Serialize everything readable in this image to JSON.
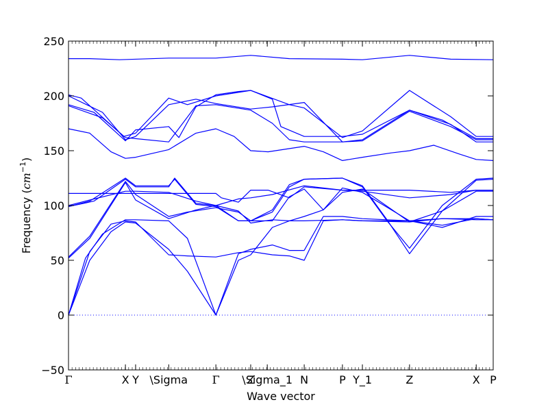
{
  "chart_data": {
    "type": "line",
    "xlabel": "Wave vector",
    "ylabel_prefix": "Frequency (",
    "ylabel_unit_base": "cm",
    "ylabel_unit_exp": "−1",
    "ylabel_suffix": ")",
    "ylim": [
      -50,
      250
    ],
    "y_ticks": [
      -50,
      0,
      50,
      100,
      150,
      200,
      250
    ],
    "y_tick_labels": [
      "−50",
      "0",
      "50",
      "100",
      "150",
      "200",
      "250"
    ],
    "x_range": [
      0,
      1
    ],
    "grid": false,
    "legend": "none",
    "line_color": "#0000ff",
    "zero_line": "dotted",
    "high_symmetry_points": [
      {
        "label": "Γ",
        "x": 0.0
      },
      {
        "label": "X",
        "x": 0.134
      },
      {
        "label": "Y",
        "x": 0.158
      },
      {
        "label": "\\Sigma",
        "x": 0.236
      },
      {
        "label": "Γ",
        "x": 0.347
      },
      {
        "label": "Z",
        "x": 0.429
      },
      {
        "label": "\\Sigma_1",
        "x": 0.468
      },
      {
        "label": "N",
        "x": 0.555
      },
      {
        "label": "P",
        "x": 0.645
      },
      {
        "label": "Y_1",
        "x": 0.692
      },
      {
        "label": "Z",
        "x": 0.803
      },
      {
        "label": "X",
        "x": 0.96
      },
      {
        "label": "P",
        "x": 1.0
      }
    ],
    "series": [
      {
        "points": [
          [
            0.0,
            234
          ],
          [
            0.05,
            234
          ],
          [
            0.12,
            233
          ],
          [
            0.236,
            234.5
          ],
          [
            0.347,
            234.5
          ],
          [
            0.429,
            237
          ],
          [
            0.52,
            234
          ],
          [
            0.645,
            233.5
          ],
          [
            0.692,
            233
          ],
          [
            0.803,
            237
          ],
          [
            0.9,
            233.5
          ],
          [
            1.0,
            233
          ]
        ]
      },
      {
        "points": [
          [
            0.0,
            201
          ],
          [
            0.03,
            198
          ],
          [
            0.13,
            163
          ],
          [
            0.158,
            166
          ],
          [
            0.236,
            198
          ],
          [
            0.28,
            192
          ],
          [
            0.347,
            200
          ],
          [
            0.429,
            205
          ],
          [
            0.52,
            192
          ],
          [
            0.555,
            189
          ],
          [
            0.645,
            162
          ],
          [
            0.692,
            168
          ],
          [
            0.803,
            205
          ],
          [
            0.9,
            181
          ],
          [
            0.96,
            163
          ],
          [
            1.0,
            163
          ]
        ]
      },
      {
        "points": [
          [
            0.0,
            200
          ],
          [
            0.08,
            185
          ],
          [
            0.134,
            160
          ],
          [
            0.158,
            163
          ],
          [
            0.236,
            192
          ],
          [
            0.3,
            197
          ],
          [
            0.347,
            193
          ],
          [
            0.429,
            188
          ],
          [
            0.48,
            190
          ],
          [
            0.555,
            194
          ],
          [
            0.645,
            158
          ],
          [
            0.692,
            160
          ],
          [
            0.803,
            187
          ],
          [
            0.9,
            174
          ],
          [
            0.96,
            158
          ],
          [
            1.0,
            158
          ]
        ]
      },
      {
        "points": [
          [
            0.0,
            192
          ],
          [
            0.06,
            185
          ],
          [
            0.134,
            159
          ],
          [
            0.158,
            169
          ],
          [
            0.236,
            172
          ],
          [
            0.26,
            162
          ],
          [
            0.3,
            190
          ],
          [
            0.347,
            201
          ],
          [
            0.4,
            204
          ],
          [
            0.429,
            205
          ],
          [
            0.48,
            197
          ],
          [
            0.5,
            172
          ],
          [
            0.555,
            163
          ],
          [
            0.645,
            163
          ],
          [
            0.692,
            165
          ],
          [
            0.803,
            187
          ],
          [
            0.88,
            178
          ],
          [
            0.96,
            161
          ],
          [
            1.0,
            161
          ]
        ]
      },
      {
        "points": [
          [
            0.0,
            191
          ],
          [
            0.08,
            180
          ],
          [
            0.134,
            162
          ],
          [
            0.158,
            161
          ],
          [
            0.236,
            158
          ],
          [
            0.3,
            191
          ],
          [
            0.347,
            192
          ],
          [
            0.429,
            187
          ],
          [
            0.48,
            175
          ],
          [
            0.52,
            160
          ],
          [
            0.555,
            158
          ],
          [
            0.645,
            158
          ],
          [
            0.692,
            159
          ],
          [
            0.803,
            186
          ],
          [
            0.9,
            172
          ],
          [
            0.96,
            160
          ],
          [
            1.0,
            160
          ]
        ]
      },
      {
        "points": [
          [
            0.0,
            170
          ],
          [
            0.05,
            166
          ],
          [
            0.1,
            149
          ],
          [
            0.134,
            143
          ],
          [
            0.158,
            144
          ],
          [
            0.236,
            151
          ],
          [
            0.3,
            166
          ],
          [
            0.347,
            170
          ],
          [
            0.39,
            163
          ],
          [
            0.429,
            150
          ],
          [
            0.47,
            149
          ],
          [
            0.555,
            154
          ],
          [
            0.6,
            149
          ],
          [
            0.645,
            141
          ],
          [
            0.692,
            144
          ],
          [
            0.76,
            148
          ],
          [
            0.803,
            150
          ],
          [
            0.86,
            155
          ],
          [
            0.92,
            147
          ],
          [
            0.96,
            142
          ],
          [
            1.0,
            141
          ]
        ]
      },
      {
        "points": [
          [
            0.0,
            111
          ],
          [
            0.134,
            111
          ],
          [
            0.158,
            111
          ],
          [
            0.236,
            111
          ],
          [
            0.347,
            111
          ],
          [
            0.36,
            107
          ],
          [
            0.4,
            103
          ],
          [
            0.429,
            114
          ],
          [
            0.47,
            114
          ],
          [
            0.52,
            107
          ],
          [
            0.555,
            117
          ],
          [
            0.645,
            114
          ],
          [
            0.692,
            114
          ],
          [
            0.803,
            114
          ],
          [
            0.9,
            112
          ],
          [
            0.96,
            114
          ],
          [
            1.0,
            114
          ]
        ]
      },
      {
        "points": [
          [
            0.0,
            100
          ],
          [
            0.05,
            105
          ],
          [
            0.134,
            113
          ],
          [
            0.158,
            113
          ],
          [
            0.236,
            112
          ],
          [
            0.3,
            104
          ],
          [
            0.347,
            100
          ],
          [
            0.4,
            106
          ],
          [
            0.429,
            107
          ],
          [
            0.48,
            110
          ],
          [
            0.555,
            118
          ],
          [
            0.645,
            114
          ],
          [
            0.692,
            113
          ],
          [
            0.803,
            107
          ],
          [
            0.9,
            110
          ],
          [
            0.96,
            114
          ],
          [
            1.0,
            114
          ]
        ]
      },
      {
        "points": [
          [
            0.0,
            99
          ],
          [
            0.05,
            104
          ],
          [
            0.134,
            125
          ],
          [
            0.158,
            118
          ],
          [
            0.236,
            118
          ],
          [
            0.25,
            124
          ],
          [
            0.3,
            101
          ],
          [
            0.347,
            99
          ],
          [
            0.4,
            86
          ],
          [
            0.429,
            86
          ],
          [
            0.48,
            96
          ],
          [
            0.52,
            119
          ],
          [
            0.555,
            124
          ],
          [
            0.645,
            125
          ],
          [
            0.692,
            117
          ],
          [
            0.75,
            86
          ],
          [
            0.803,
            61
          ],
          [
            0.88,
            100
          ],
          [
            0.96,
            124
          ],
          [
            1.0,
            125
          ]
        ]
      },
      {
        "points": [
          [
            0.0,
            99
          ],
          [
            0.06,
            104
          ],
          [
            0.134,
            124
          ],
          [
            0.158,
            117
          ],
          [
            0.236,
            117
          ],
          [
            0.25,
            125
          ],
          [
            0.3,
            102
          ],
          [
            0.347,
            100
          ],
          [
            0.4,
            86
          ],
          [
            0.429,
            86
          ],
          [
            0.48,
            94
          ],
          [
            0.52,
            117
          ],
          [
            0.555,
            124
          ],
          [
            0.645,
            125
          ],
          [
            0.692,
            118
          ],
          [
            0.75,
            87
          ],
          [
            0.803,
            56
          ],
          [
            0.88,
            95
          ],
          [
            0.96,
            123
          ],
          [
            1.0,
            124
          ]
        ]
      },
      {
        "points": [
          [
            0.0,
            53
          ],
          [
            0.05,
            72
          ],
          [
            0.134,
            122
          ],
          [
            0.158,
            110
          ],
          [
            0.236,
            90
          ],
          [
            0.28,
            94
          ],
          [
            0.347,
            98
          ],
          [
            0.4,
            94
          ],
          [
            0.429,
            86
          ],
          [
            0.48,
            86
          ],
          [
            0.52,
            108
          ],
          [
            0.555,
            115
          ],
          [
            0.6,
            96
          ],
          [
            0.645,
            112
          ],
          [
            0.692,
            115
          ],
          [
            0.803,
            85
          ],
          [
            0.88,
            95
          ],
          [
            0.96,
            113
          ],
          [
            1.0,
            113
          ]
        ]
      },
      {
        "points": [
          [
            0.0,
            52
          ],
          [
            0.05,
            70
          ],
          [
            0.134,
            121
          ],
          [
            0.158,
            105
          ],
          [
            0.236,
            88
          ],
          [
            0.3,
            96
          ],
          [
            0.347,
            100
          ],
          [
            0.4,
            95
          ],
          [
            0.429,
            84
          ],
          [
            0.48,
            87
          ],
          [
            0.52,
            86
          ],
          [
            0.555,
            90
          ],
          [
            0.6,
            96
          ],
          [
            0.645,
            116
          ],
          [
            0.692,
            112
          ],
          [
            0.803,
            86
          ],
          [
            0.88,
            80
          ],
          [
            0.96,
            90
          ],
          [
            1.0,
            90
          ]
        ]
      },
      {
        "points": [
          [
            0.0,
            0
          ],
          [
            0.04,
            52
          ],
          [
            0.08,
            74
          ],
          [
            0.134,
            87
          ],
          [
            0.158,
            87
          ],
          [
            0.236,
            86
          ],
          [
            0.28,
            70
          ],
          [
            0.347,
            0
          ],
          [
            0.4,
            56
          ],
          [
            0.429,
            60
          ],
          [
            0.48,
            64
          ],
          [
            0.52,
            59
          ],
          [
            0.555,
            59
          ],
          [
            0.6,
            90
          ],
          [
            0.645,
            90
          ],
          [
            0.692,
            88
          ],
          [
            0.803,
            86
          ],
          [
            0.88,
            82
          ],
          [
            0.96,
            88
          ],
          [
            1.0,
            87
          ]
        ]
      },
      {
        "points": [
          [
            0.0,
            0
          ],
          [
            0.05,
            58
          ],
          [
            0.1,
            83
          ],
          [
            0.134,
            86
          ],
          [
            0.158,
            85
          ],
          [
            0.236,
            55
          ],
          [
            0.28,
            54
          ],
          [
            0.347,
            53
          ],
          [
            0.4,
            57
          ],
          [
            0.429,
            58
          ],
          [
            0.48,
            55
          ],
          [
            0.52,
            54
          ],
          [
            0.555,
            50
          ],
          [
            0.6,
            86
          ],
          [
            0.645,
            87
          ],
          [
            0.692,
            86
          ],
          [
            0.803,
            85
          ],
          [
            0.88,
            88
          ],
          [
            0.96,
            87
          ],
          [
            1.0,
            87
          ]
        ]
      },
      {
        "points": [
          [
            0.0,
            0
          ],
          [
            0.05,
            50
          ],
          [
            0.1,
            76
          ],
          [
            0.134,
            85
          ],
          [
            0.158,
            84
          ],
          [
            0.236,
            60
          ],
          [
            0.28,
            40
          ],
          [
            0.347,
            0
          ],
          [
            0.4,
            50
          ],
          [
            0.429,
            55
          ],
          [
            0.48,
            80
          ],
          [
            0.52,
            86
          ],
          [
            0.555,
            86
          ],
          [
            0.645,
            87
          ],
          [
            0.692,
            86
          ],
          [
            0.803,
            86
          ],
          [
            0.88,
            88
          ],
          [
            0.96,
            88
          ],
          [
            1.0,
            87
          ]
        ]
      }
    ]
  }
}
